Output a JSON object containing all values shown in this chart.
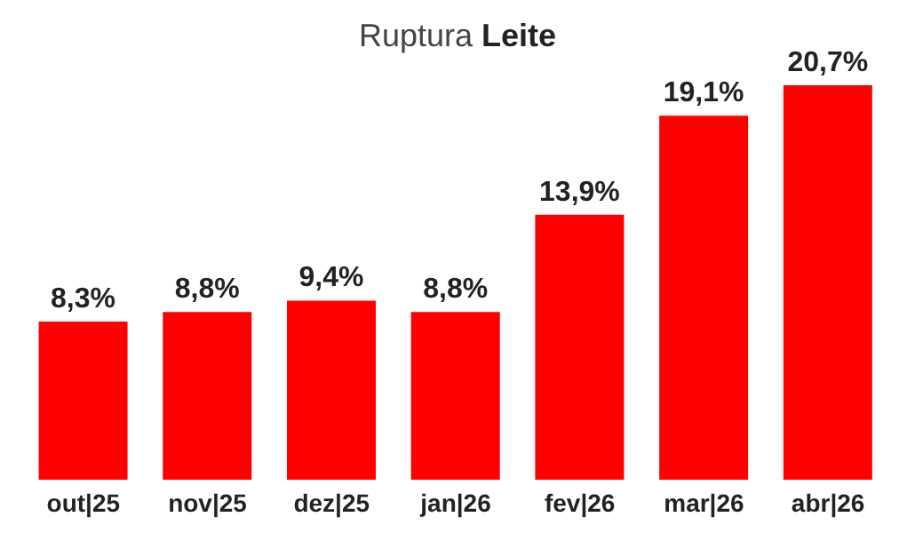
{
  "chart_data": {
    "type": "bar",
    "title": "Ruptura Leite",
    "categories": [
      "out|25",
      "nov|25",
      "dez|25",
      "jan|26",
      "fev|26",
      "mar|26",
      "abr|26"
    ],
    "values": [
      8.3,
      8.8,
      9.4,
      8.8,
      13.9,
      19.1,
      20.7
    ],
    "value_labels": [
      "8,3%",
      "8,8%",
      "9,4%",
      "8,8%",
      "13,9%",
      "19,1%",
      "20,7%"
    ],
    "color": "#ff0000",
    "grid": false,
    "legend": false
  }
}
